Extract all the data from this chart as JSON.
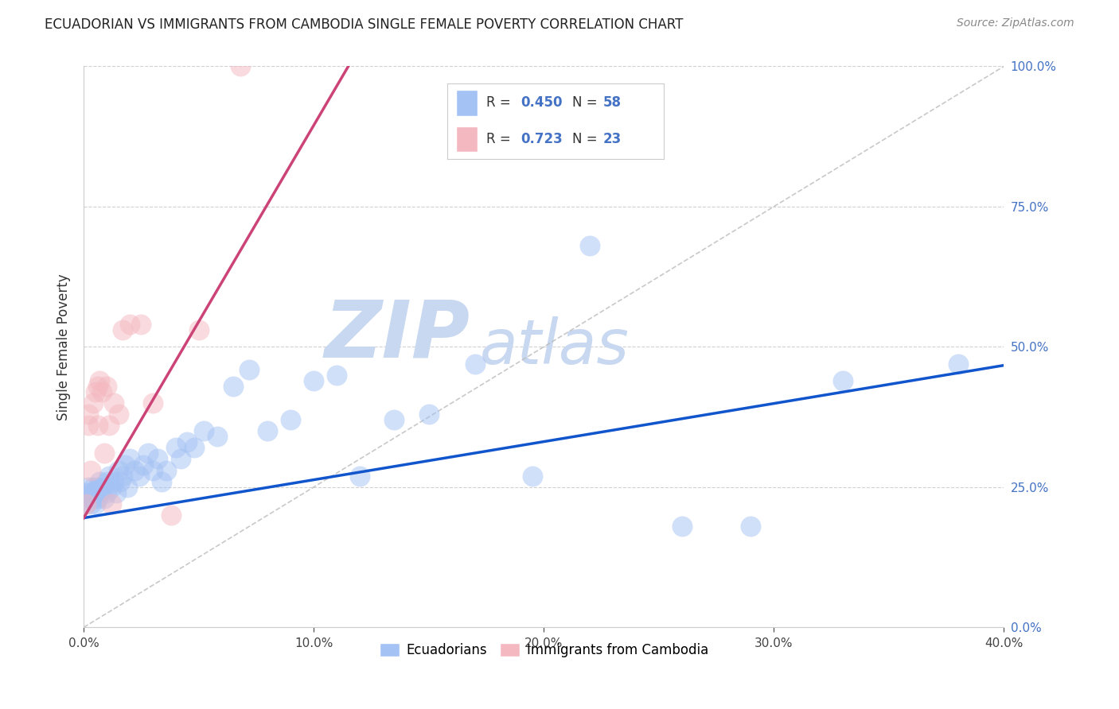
{
  "title": "ECUADORIAN VS IMMIGRANTS FROM CAMBODIA SINGLE FEMALE POVERTY CORRELATION CHART",
  "source": "Source: ZipAtlas.com",
  "ylabel_label": "Single Female Poverty",
  "xlim": [
    0.0,
    0.4
  ],
  "ylim": [
    0.0,
    1.0
  ],
  "legend_labels": [
    "Ecuadorians",
    "Immigrants from Cambodia"
  ],
  "legend_r": [
    "0.450",
    "0.723"
  ],
  "legend_n": [
    "58",
    "23"
  ],
  "blue_color": "#a4c2f4",
  "pink_color": "#f4b8c1",
  "line_blue": "#1155cc",
  "line_pink": "#cc4477",
  "diag_color": "#bbbbbb",
  "watermark_zip": "ZIP",
  "watermark_atlas": "atlas",
  "watermark_color_zip": "#c8d8f0",
  "watermark_color_atlas": "#c8d8f0",
  "title_fontsize": 12,
  "source_fontsize": 10,
  "background_color": "#ffffff",
  "blue_line_intercept": 0.195,
  "blue_line_slope": 0.68,
  "pink_line_intercept": 0.195,
  "pink_line_slope": 7.0,
  "ecuadorians_x": [
    0.001,
    0.001,
    0.002,
    0.002,
    0.003,
    0.003,
    0.004,
    0.004,
    0.005,
    0.005,
    0.006,
    0.006,
    0.007,
    0.007,
    0.008,
    0.009,
    0.01,
    0.01,
    0.011,
    0.012,
    0.013,
    0.014,
    0.015,
    0.016,
    0.017,
    0.018,
    0.019,
    0.02,
    0.022,
    0.024,
    0.026,
    0.028,
    0.03,
    0.032,
    0.034,
    0.036,
    0.04,
    0.042,
    0.045,
    0.048,
    0.052,
    0.058,
    0.065,
    0.072,
    0.08,
    0.09,
    0.1,
    0.11,
    0.12,
    0.135,
    0.15,
    0.17,
    0.195,
    0.22,
    0.26,
    0.29,
    0.33,
    0.38
  ],
  "ecuadorians_y": [
    0.24,
    0.22,
    0.25,
    0.23,
    0.24,
    0.22,
    0.23,
    0.25,
    0.24,
    0.22,
    0.25,
    0.23,
    0.26,
    0.24,
    0.25,
    0.23,
    0.26,
    0.24,
    0.27,
    0.25,
    0.26,
    0.24,
    0.28,
    0.26,
    0.27,
    0.29,
    0.25,
    0.3,
    0.28,
    0.27,
    0.29,
    0.31,
    0.28,
    0.3,
    0.26,
    0.28,
    0.32,
    0.3,
    0.33,
    0.32,
    0.35,
    0.34,
    0.43,
    0.46,
    0.35,
    0.37,
    0.44,
    0.45,
    0.27,
    0.37,
    0.38,
    0.47,
    0.27,
    0.68,
    0.18,
    0.18,
    0.44,
    0.47
  ],
  "cambodia_x": [
    0.001,
    0.002,
    0.002,
    0.003,
    0.004,
    0.005,
    0.006,
    0.006,
    0.007,
    0.008,
    0.009,
    0.01,
    0.011,
    0.012,
    0.013,
    0.015,
    0.017,
    0.02,
    0.025,
    0.03,
    0.038,
    0.05,
    0.068
  ],
  "cambodia_y": [
    0.22,
    0.36,
    0.38,
    0.28,
    0.4,
    0.42,
    0.36,
    0.43,
    0.44,
    0.42,
    0.31,
    0.43,
    0.36,
    0.22,
    0.4,
    0.38,
    0.53,
    0.54,
    0.54,
    0.4,
    0.2,
    0.53,
    1.0
  ]
}
